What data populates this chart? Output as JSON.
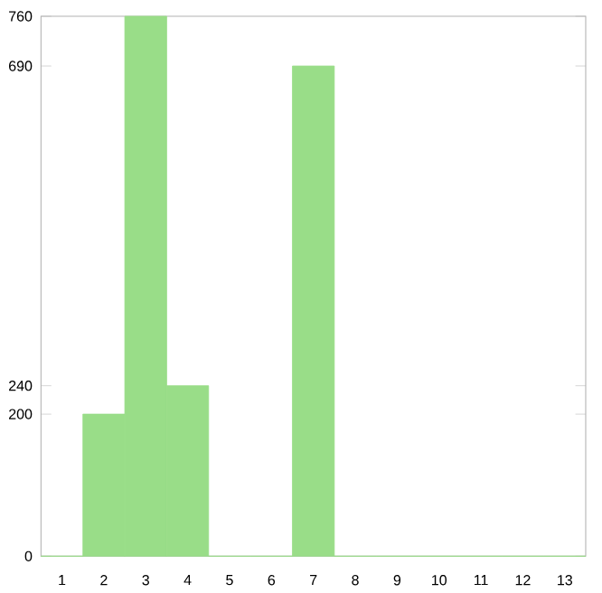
{
  "chart_data": {
    "type": "bar",
    "categories": [
      "1",
      "2",
      "3",
      "4",
      "5",
      "6",
      "7",
      "8",
      "9",
      "10",
      "11",
      "12",
      "13"
    ],
    "values": [
      0,
      200,
      760,
      240,
      0,
      0,
      690,
      0,
      0,
      0,
      0,
      0,
      0
    ],
    "color": "#99dd88",
    "ylim": [
      0,
      760
    ],
    "yticks": [
      0,
      200,
      240,
      690,
      760
    ],
    "grid": false
  }
}
